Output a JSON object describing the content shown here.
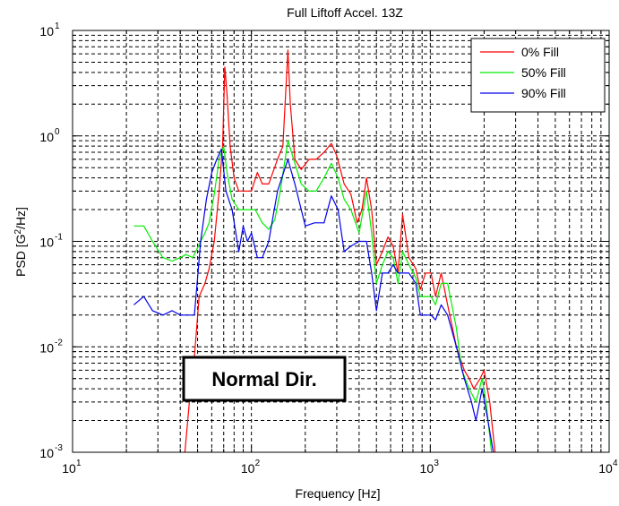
{
  "chart_data": {
    "type": "line",
    "title": "Full Liftoff Accel. 13Z",
    "xlabel": "Frequency [Hz]",
    "ylabel": "PSD [G²/Hz]",
    "xscale": "log",
    "yscale": "log",
    "xlim": [
      10,
      10000
    ],
    "ylim": [
      0.001,
      10
    ],
    "grid": true,
    "legend_position": "top-right",
    "x_ticks": [
      {
        "base": "10",
        "exp": "1"
      },
      {
        "base": "10",
        "exp": "2"
      },
      {
        "base": "10",
        "exp": "3"
      },
      {
        "base": "10",
        "exp": "4"
      }
    ],
    "y_ticks": [
      {
        "base": "10",
        "exp": "-3"
      },
      {
        "base": "10",
        "exp": "-2"
      },
      {
        "base": "10",
        "exp": "-1"
      },
      {
        "base": "10",
        "exp": "0"
      },
      {
        "base": "10",
        "exp": "1"
      }
    ],
    "annotation": "Normal Dir.",
    "series": [
      {
        "name": "0% Fill",
        "color": "#ff0000",
        "points": [
          [
            42,
            0.0008
          ],
          [
            45,
            0.003
          ],
          [
            48,
            0.008
          ],
          [
            51,
            0.03
          ],
          [
            55,
            0.04
          ],
          [
            58,
            0.055
          ],
          [
            62,
            0.1
          ],
          [
            66,
            0.3
          ],
          [
            69,
            0.8
          ],
          [
            71,
            4.5
          ],
          [
            73,
            2.5
          ],
          [
            76,
            0.8
          ],
          [
            80,
            0.4
          ],
          [
            85,
            0.3
          ],
          [
            95,
            0.3
          ],
          [
            100,
            0.3
          ],
          [
            108,
            0.45
          ],
          [
            115,
            0.35
          ],
          [
            125,
            0.35
          ],
          [
            140,
            0.6
          ],
          [
            150,
            0.8
          ],
          [
            160,
            6.5
          ],
          [
            165,
            2.0
          ],
          [
            175,
            0.6
          ],
          [
            190,
            0.48
          ],
          [
            210,
            0.6
          ],
          [
            230,
            0.6
          ],
          [
            255,
            0.7
          ],
          [
            280,
            0.85
          ],
          [
            300,
            0.65
          ],
          [
            330,
            0.35
          ],
          [
            360,
            0.28
          ],
          [
            390,
            0.15
          ],
          [
            415,
            0.2
          ],
          [
            440,
            0.4
          ],
          [
            470,
            0.2
          ],
          [
            500,
            0.06
          ],
          [
            540,
            0.08
          ],
          [
            580,
            0.11
          ],
          [
            620,
            0.09
          ],
          [
            660,
            0.05
          ],
          [
            700,
            0.18
          ],
          [
            760,
            0.07
          ],
          [
            830,
            0.055
          ],
          [
            880,
            0.035
          ],
          [
            940,
            0.05
          ],
          [
            1010,
            0.05
          ],
          [
            1070,
            0.03
          ],
          [
            1150,
            0.05
          ],
          [
            1250,
            0.025
          ],
          [
            1400,
            0.01
          ],
          [
            1550,
            0.006
          ],
          [
            1650,
            0.005
          ],
          [
            1750,
            0.004
          ],
          [
            1900,
            0.005
          ],
          [
            2000,
            0.006
          ],
          [
            2150,
            0.003
          ],
          [
            2300,
            0.001
          ]
        ]
      },
      {
        "name": "50% Fill",
        "color": "#00ee00",
        "points": [
          [
            22,
            0.14
          ],
          [
            25,
            0.14
          ],
          [
            28,
            0.1
          ],
          [
            32,
            0.07
          ],
          [
            36,
            0.065
          ],
          [
            40,
            0.07
          ],
          [
            43,
            0.075
          ],
          [
            47,
            0.07
          ],
          [
            52,
            0.1
          ],
          [
            55,
            0.12
          ],
          [
            58,
            0.15
          ],
          [
            62,
            0.28
          ],
          [
            66,
            0.6
          ],
          [
            70,
            0.8
          ],
          [
            73,
            0.45
          ],
          [
            78,
            0.25
          ],
          [
            85,
            0.2
          ],
          [
            95,
            0.2
          ],
          [
            105,
            0.2
          ],
          [
            115,
            0.15
          ],
          [
            125,
            0.13
          ],
          [
            135,
            0.16
          ],
          [
            145,
            0.3
          ],
          [
            160,
            0.9
          ],
          [
            175,
            0.55
          ],
          [
            190,
            0.35
          ],
          [
            210,
            0.3
          ],
          [
            230,
            0.3
          ],
          [
            255,
            0.4
          ],
          [
            280,
            0.55
          ],
          [
            305,
            0.4
          ],
          [
            330,
            0.25
          ],
          [
            360,
            0.2
          ],
          [
            400,
            0.12
          ],
          [
            440,
            0.3
          ],
          [
            470,
            0.12
          ],
          [
            500,
            0.04
          ],
          [
            540,
            0.06
          ],
          [
            580,
            0.08
          ],
          [
            620,
            0.07
          ],
          [
            660,
            0.04
          ],
          [
            700,
            0.08
          ],
          [
            760,
            0.06
          ],
          [
            830,
            0.045
          ],
          [
            880,
            0.03
          ],
          [
            940,
            0.03
          ],
          [
            1010,
            0.03
          ],
          [
            1070,
            0.025
          ],
          [
            1150,
            0.04
          ],
          [
            1250,
            0.04
          ],
          [
            1400,
            0.015
          ],
          [
            1500,
            0.006
          ],
          [
            1650,
            0.004
          ],
          [
            1800,
            0.003
          ],
          [
            1950,
            0.005
          ],
          [
            2050,
            0.003
          ],
          [
            2200,
            0.001
          ]
        ]
      },
      {
        "name": "90% Fill",
        "color": "#0000ee",
        "points": [
          [
            22,
            0.025
          ],
          [
            25,
            0.03
          ],
          [
            28,
            0.022
          ],
          [
            32,
            0.02
          ],
          [
            36,
            0.022
          ],
          [
            40,
            0.02
          ],
          [
            45,
            0.02
          ],
          [
            48,
            0.02
          ],
          [
            52,
            0.1
          ],
          [
            56,
            0.25
          ],
          [
            60,
            0.45
          ],
          [
            64,
            0.6
          ],
          [
            68,
            0.75
          ],
          [
            72,
            0.3
          ],
          [
            78,
            0.2
          ],
          [
            85,
            0.08
          ],
          [
            90,
            0.14
          ],
          [
            95,
            0.1
          ],
          [
            100,
            0.12
          ],
          [
            108,
            0.07
          ],
          [
            115,
            0.07
          ],
          [
            125,
            0.1
          ],
          [
            140,
            0.3
          ],
          [
            160,
            0.6
          ],
          [
            175,
            0.35
          ],
          [
            190,
            0.2
          ],
          [
            200,
            0.14
          ],
          [
            225,
            0.15
          ],
          [
            255,
            0.15
          ],
          [
            280,
            0.27
          ],
          [
            305,
            0.2
          ],
          [
            330,
            0.08
          ],
          [
            360,
            0.09
          ],
          [
            400,
            0.1
          ],
          [
            440,
            0.1
          ],
          [
            470,
            0.05
          ],
          [
            500,
            0.022
          ],
          [
            540,
            0.05
          ],
          [
            580,
            0.05
          ],
          [
            620,
            0.06
          ],
          [
            660,
            0.05
          ],
          [
            700,
            0.05
          ],
          [
            760,
            0.05
          ],
          [
            830,
            0.04
          ],
          [
            880,
            0.02
          ],
          [
            940,
            0.02
          ],
          [
            1010,
            0.02
          ],
          [
            1070,
            0.018
          ],
          [
            1150,
            0.025
          ],
          [
            1250,
            0.02
          ],
          [
            1400,
            0.01
          ],
          [
            1550,
            0.005
          ],
          [
            1700,
            0.003
          ],
          [
            1800,
            0.002
          ],
          [
            1950,
            0.004
          ],
          [
            2100,
            0.002
          ],
          [
            2250,
            0.001
          ]
        ]
      }
    ]
  }
}
